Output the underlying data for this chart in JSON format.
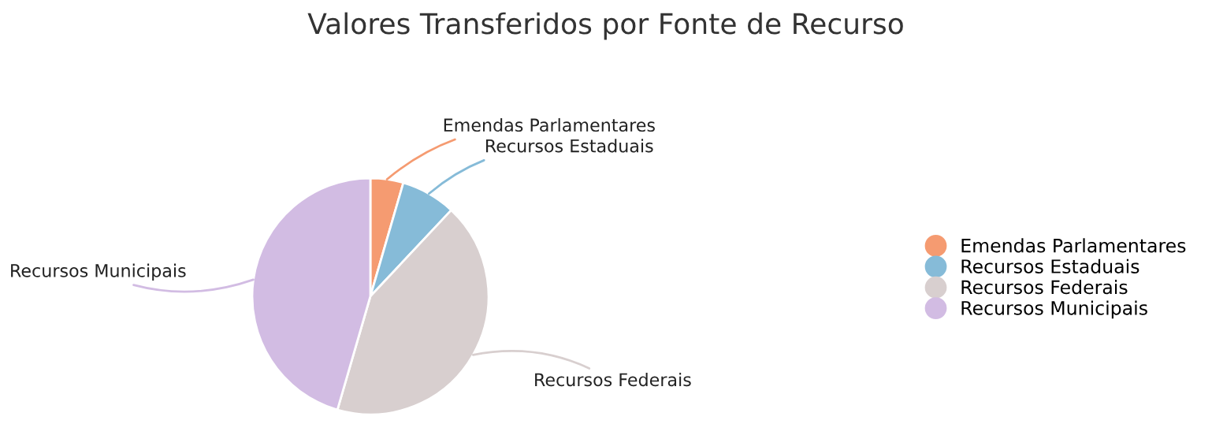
{
  "chart_data": {
    "type": "pie",
    "title": "Valores Transferidos por Fonte de Recurso",
    "categories": [
      "Emendas Parlamentares",
      "Recursos Estaduais",
      "Recursos Federais",
      "Recursos Municipais"
    ],
    "values": [
      4.5,
      7.5,
      42.5,
      45.5
    ],
    "colors": [
      "#f59b71",
      "#86bbd8",
      "#d8cfcf",
      "#d2bce3"
    ],
    "legend": "right"
  }
}
